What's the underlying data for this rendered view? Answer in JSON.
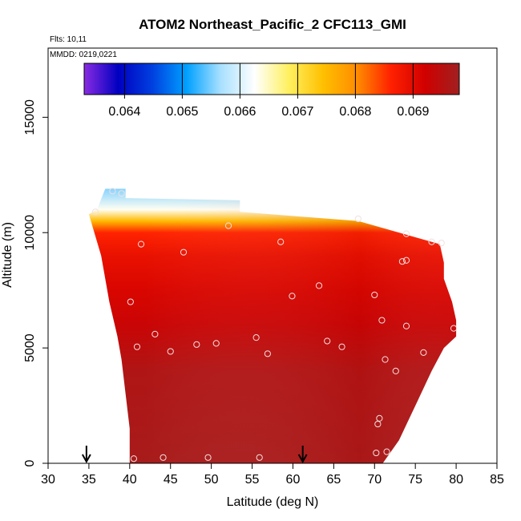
{
  "chart_data": {
    "type": "heatmap",
    "title": "ATOM2 Northeast_Pacific_2 CFC113_GMI",
    "flights_label": "Flts: 10,11",
    "dates_label": "MMDD: 0219,0221",
    "xlabel": "Latitude (deg N)",
    "ylabel": "Altitude (m)",
    "xlim": [
      30,
      85
    ],
    "ylim": [
      0,
      18000
    ],
    "x_ticks": [
      "30",
      "35",
      "40",
      "45",
      "50",
      "55",
      "60",
      "65",
      "70",
      "75",
      "80",
      "85"
    ],
    "y_ticks": [
      "0",
      "5000",
      "10000",
      "15000"
    ],
    "colorbar": {
      "min": 0.0633,
      "max": 0.0698,
      "tick_labels": [
        "0.064",
        "0.065",
        "0.066",
        "0.067",
        "0.068",
        "0.069"
      ],
      "tick_values": [
        0.064,
        0.065,
        0.066,
        0.067,
        0.068,
        0.069
      ],
      "color_stops": [
        "#8a2be2",
        "#0000c0",
        "#0040e0",
        "#00a0ff",
        "#a8e0ff",
        "#ffffff",
        "#fff060",
        "#ffc000",
        "#ff8c00",
        "#ff2000",
        "#d00000",
        "#a02020"
      ]
    },
    "vertical_profile": [
      {
        "alt": 0,
        "value": 0.0697
      },
      {
        "alt": 4000,
        "value": 0.0696
      },
      {
        "alt": 6000,
        "value": 0.0693
      },
      {
        "alt": 7500,
        "value": 0.0691
      },
      {
        "alt": 9000,
        "value": 0.0689
      },
      {
        "alt": 10000,
        "value": 0.0686
      },
      {
        "alt": 10500,
        "value": 0.0675
      },
      {
        "alt": 11000,
        "value": 0.0663
      },
      {
        "alt": 12000,
        "value": 0.0655
      }
    ],
    "coverage": {
      "outline": [
        [
          40.0,
          0
        ],
        [
          71.0,
          0
        ],
        [
          73.0,
          1000
        ],
        [
          75.0,
          2500
        ],
        [
          77.0,
          4000
        ],
        [
          78.5,
          5000
        ],
        [
          80.0,
          5500
        ],
        [
          80.0,
          6200
        ],
        [
          79.5,
          7000
        ],
        [
          78.5,
          8000
        ],
        [
          78.5,
          8700
        ],
        [
          78.0,
          9500
        ],
        [
          68.0,
          10500
        ],
        [
          53.5,
          10900
        ],
        [
          53.5,
          11400
        ],
        [
          39.5,
          11500
        ],
        [
          39.5,
          11900
        ],
        [
          37.0,
          11900
        ],
        [
          36.0,
          11000
        ],
        [
          35.0,
          10800
        ],
        [
          36.5,
          9000
        ],
        [
          37.5,
          7000
        ],
        [
          38.5,
          5500
        ],
        [
          39.0,
          4500
        ],
        [
          39.5,
          3000
        ],
        [
          40.0,
          1500
        ]
      ]
    },
    "samples": [
      {
        "lat": 37.9,
        "alt": 11800
      },
      {
        "lat": 39.0,
        "alt": 11700
      },
      {
        "lat": 35.8,
        "alt": 10900
      },
      {
        "lat": 52.1,
        "alt": 10300
      },
      {
        "lat": 68.0,
        "alt": 10600
      },
      {
        "lat": 73.9,
        "alt": 9950
      },
      {
        "lat": 77.0,
        "alt": 9600
      },
      {
        "lat": 78.2,
        "alt": 9550
      },
      {
        "lat": 41.4,
        "alt": 9500
      },
      {
        "lat": 58.5,
        "alt": 9600
      },
      {
        "lat": 46.6,
        "alt": 9150
      },
      {
        "lat": 73.4,
        "alt": 8750
      },
      {
        "lat": 73.9,
        "alt": 8800
      },
      {
        "lat": 63.2,
        "alt": 7700
      },
      {
        "lat": 59.9,
        "alt": 7250
      },
      {
        "lat": 70.0,
        "alt": 7300
      },
      {
        "lat": 40.1,
        "alt": 7000
      },
      {
        "lat": 70.9,
        "alt": 6200
      },
      {
        "lat": 73.9,
        "alt": 5950
      },
      {
        "lat": 79.7,
        "alt": 5850
      },
      {
        "lat": 43.1,
        "alt": 5600
      },
      {
        "lat": 55.5,
        "alt": 5450
      },
      {
        "lat": 64.2,
        "alt": 5300
      },
      {
        "lat": 50.6,
        "alt": 5200
      },
      {
        "lat": 48.2,
        "alt": 5150
      },
      {
        "lat": 66.0,
        "alt": 5050
      },
      {
        "lat": 40.9,
        "alt": 5050
      },
      {
        "lat": 45.0,
        "alt": 4850
      },
      {
        "lat": 56.9,
        "alt": 4750
      },
      {
        "lat": 76.0,
        "alt": 4800
      },
      {
        "lat": 71.3,
        "alt": 4500
      },
      {
        "lat": 72.6,
        "alt": 4000
      },
      {
        "lat": 70.6,
        "alt": 1950
      },
      {
        "lat": 70.4,
        "alt": 1700
      },
      {
        "lat": 70.2,
        "alt": 450
      },
      {
        "lat": 71.5,
        "alt": 500
      },
      {
        "lat": 40.5,
        "alt": 200
      },
      {
        "lat": 44.1,
        "alt": 250
      },
      {
        "lat": 49.6,
        "alt": 250
      },
      {
        "lat": 55.9,
        "alt": 250
      }
    ],
    "arrows": [
      {
        "lat": 34.7
      },
      {
        "lat": 61.2
      }
    ]
  }
}
